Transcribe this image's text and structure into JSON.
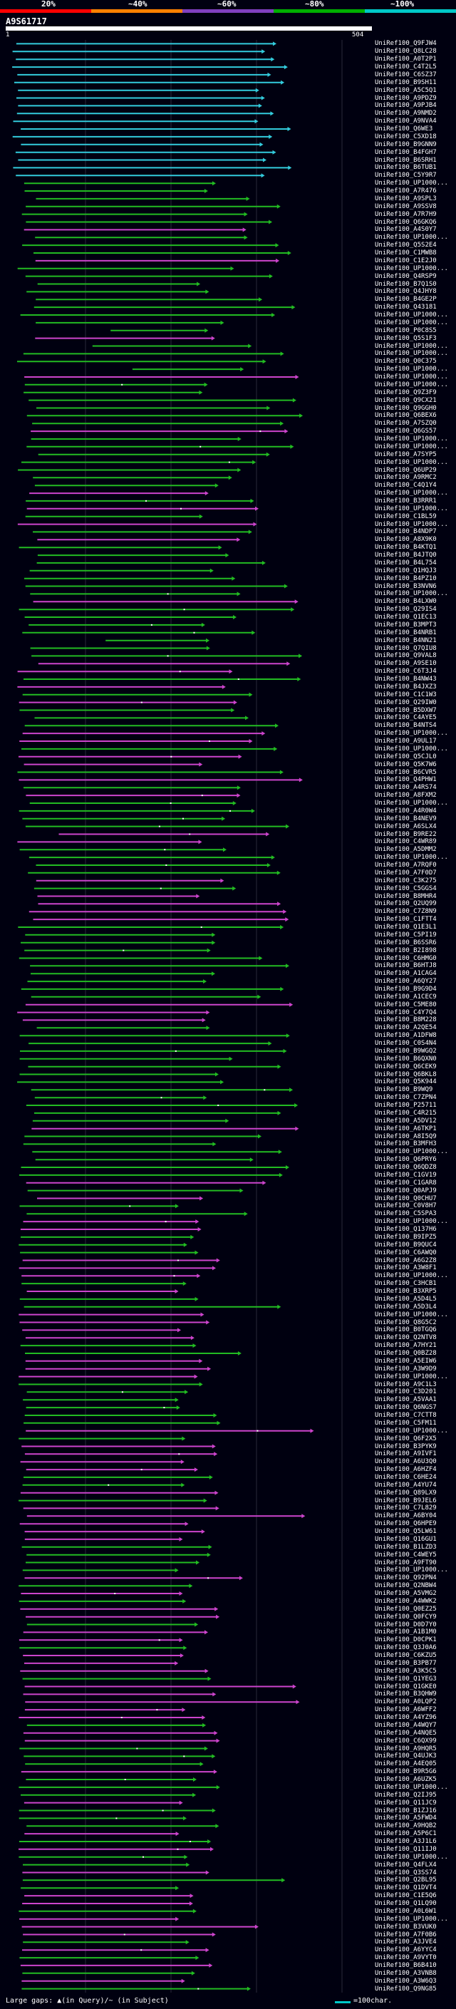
{
  "legend": {
    "labels": [
      "20%",
      "~40%",
      "~60%",
      "~80%",
      "~100%"
    ],
    "colors": [
      "#ff0000",
      "#ff8000",
      "#8040c0",
      "#00b000",
      "#00c8c8"
    ]
  },
  "query": {
    "id": "A9S61717",
    "start": "1",
    "end": "504"
  },
  "footer": {
    "gaps_text": "Large gaps: ▲(in Query)/~ (in Subject)",
    "scale_text": "=100char."
  },
  "colors": {
    "cyan": "#33ccdd",
    "green": "#22bb22",
    "magenta": "#cc44cc",
    "white": "#ffffff",
    "background": "#000010"
  },
  "hits": [
    "UniRef100_Q9FJW4",
    "UniRef100_Q8LC28",
    "UniRef100_A0T2P1",
    "UniRef100_C4T2L5",
    "UniRef100_C6SZ37",
    "UniRef100_B9SH11",
    "UniRef100_A5C5Q1",
    "UniRef100_A9PDZ9",
    "UniRef100_A9PJB4",
    "UniRef100_A9NMD2",
    "UniRef100_A9NVA4",
    "UniRef100_Q6WE3",
    "UniRef100_C5XD18",
    "UniRef100_B9GNN9",
    "UniRef100_B4FGH7",
    "UniRef100_B6SRH1",
    "UniRef100_B6TUB1",
    "UniRef100_C5Y9R7",
    "UniRef100_UP1000...",
    "UniRef100_A7R476",
    "UniRef100_A9SPL3",
    "UniRef100_A9SSV8",
    "UniRef100_A7R7H9",
    "UniRef100_Q6GKQ6",
    "UniRef100_A4S0Y7",
    "UniRef100_UP1000...",
    "UniRef100_Q5S2E4",
    "UniRef100_C1MWB8",
    "UniRef100_C1E2J0",
    "UniRef100_UP1000...",
    "UniRef100_Q4RSP9",
    "UniRef100_B7Q1S0",
    "UniRef100_Q4JHY8",
    "UniRef100_B4GE2P",
    "UniRef100_Q43181",
    "UniRef100_UP1000...",
    "UniRef100_UP1000...",
    "UniRef100_P0C8S5",
    "UniRef100_Q5S1F3",
    "UniRef100_UP1000...",
    "UniRef100_UP1000...",
    "UniRef100_Q0C375",
    "UniRef100_UP1000...",
    "UniRef100_UP1000...",
    "UniRef100_UP1000...",
    "UniRef100_Q9Z3F9",
    "UniRef100_Q9CX21",
    "UniRef100_Q9GGH0",
    "UniRef100_Q6BEX6",
    "UniRef100_A7SZQ0",
    "UniRef100_Q6GS57",
    "UniRef100_UP1000...",
    "UniRef100_UP1000...",
    "UniRef100_A7SYP5",
    "UniRef100_UP1000...",
    "UniRef100_Q6UP29",
    "UniRef100_A9RMC2",
    "UniRef100_C4Q1Y4",
    "UniRef100_UP1000...",
    "UniRef100_B3RRR1",
    "UniRef100_UP1000...",
    "UniRef100_C1BL59",
    "UniRef100_UP1000...",
    "UniRef100_B4NDP7",
    "UniRef100_A8X9K0",
    "UniRef100_B4KTQ1",
    "UniRef100_B4JTQ0",
    "UniRef100_B4L754",
    "UniRef100_Q1HQJ3",
    "UniRef100_B4PZ10",
    "UniRef100_B3NVN6",
    "UniRef100_UP1000...",
    "UniRef100_B4LXW0",
    "UniRef100_Q29IS4",
    "UniRef100_Q1EC13",
    "UniRef100_B3MPT3",
    "UniRef100_B4NRB1",
    "UniRef100_B4NN21",
    "UniRef100_Q7QIU8",
    "UniRef100_Q9VAL8",
    "UniRef100_A9SE10",
    "UniRef100_C6T3J4",
    "UniRef100_B4NW43",
    "UniRef100_B4JXZ3",
    "UniRef100_C1C1W3",
    "UniRef100_Q29IW0",
    "UniRef100_B5DXW7",
    "UniRef100_C4AYE5",
    "UniRef100_B4NTS4",
    "UniRef100_UP1000...",
    "UniRef100_A9UL17",
    "UniRef100_UP1000...",
    "UniRef100_Q5CJL0",
    "UniRef100_Q5K7W6",
    "UniRef100_B6CVR5",
    "UniRef100_Q4PHW1",
    "UniRef100_A4RS74",
    "UniRef100_A8FXM2",
    "UniRef100_UP1000...",
    "UniRef100_A4R0W4",
    "UniRef100_B4NEV9",
    "UniRef100_A6SLX4",
    "UniRef100_B9RE22",
    "UniRef100_C4WR89",
    "UniRef100_A5DMM2",
    "UniRef100_UP1000...",
    "UniRef100_A7RQF0",
    "UniRef100_A7F0D7",
    "UniRef100_C3K275",
    "UniRef100_C5GGS4",
    "UniRef100_B8MHR4",
    "UniRef100_Q2UQ99",
    "UniRef100_C7Z8N9",
    "UniRef100_C1FTT4",
    "UniRef100_Q1E3L1",
    "UniRef100_C5PI19",
    "UniRef100_B6SSR6",
    "UniRef100_B2I898",
    "UniRef100_C6HMG0",
    "UniRef100_B6HTJ8",
    "UniRef100_A1CAG4",
    "UniRef100_A6QY27",
    "UniRef100_B9G9D4",
    "UniRef100_A1CEC9",
    "UniRef100_C5ME80",
    "UniRef100_C4Y7Q4",
    "UniRef100_B8M228",
    "UniRef100_A2QE54",
    "UniRef100_A1DFW8",
    "UniRef100_C0S4N4",
    "UniRef100_B9WGQ2",
    "UniRef100_B6QXN0",
    "UniRef100_Q6CEK9",
    "UniRef100_Q6BKL8",
    "UniRef100_Q5K944",
    "UniRef100_B9WQ9",
    "UniRef100_C7ZPN4",
    "UniRef100_P25711",
    "UniRef100_C4R215",
    "UniRef100_A5DV12",
    "UniRef100_A6TKP1",
    "UniRef100_A8I5Q9",
    "UniRef100_B3MFH3",
    "UniRef100_UP1000...",
    "UniRef100_Q6PRY6",
    "UniRef100_Q6QDZ8",
    "UniRef100_C1GV19",
    "UniRef100_C1GAR8",
    "UniRef100_Q0APJ9",
    "UniRef100_Q0CHU7",
    "UniRef100_C0V8H7",
    "UniRef100_C5SPA3",
    "UniRef100_UP1000...",
    "UniRef100_Q137H6",
    "UniRef100_B9IPZ5",
    "UniRef100_B9QUC4",
    "UniRef100_C6AWQ0",
    "UniRef100_A6G2Z8",
    "UniRef100_A3W8F1",
    "UniRef100_UP1000...",
    "UniRef100_C3HCB1",
    "UniRef100_B3XRP5",
    "UniRef100_A5D4L5",
    "UniRef100_A5D3L4",
    "UniRef100_UP1000...",
    "UniRef100_Q8G5C2",
    "UniRef100_B0TGQ6",
    "UniRef100_Q2NTV8",
    "UniRef100_A7HY21",
    "UniRef100_Q0BZ28",
    "UniRef100_A5EIW6",
    "UniRef100_A3W9D9",
    "UniRef100_UP1000...",
    "UniRef100_A9C1L3",
    "UniRef100_C3D201",
    "UniRef100_A5VAA1",
    "UniRef100_Q6NGS7",
    "UniRef100_C7CTT8",
    "UniRef100_C5FM11",
    "UniRef100_UP1000...",
    "UniRef100_Q6F2X5",
    "UniRef100_B3PYK9",
    "UniRef100_A9IVF1",
    "UniRef100_A6U3Q0",
    "UniRef100_A6HZF4",
    "UniRef100_C6HE24",
    "UniRef100_A4YU74",
    "UniRef100_Q89LX9",
    "UniRef100_B9JEL6",
    "UniRef100_C7L829",
    "UniRef100_A6BY04",
    "UniRef100_Q6HPE9",
    "UniRef100_Q5LW61",
    "UniRef100_Q16GU1",
    "UniRef100_B1LZD3",
    "UniRef100_C4WEY5",
    "UniRef100_A9FT90",
    "UniRef100_UP1000...",
    "UniRef100_Q92PN4",
    "UniRef100_Q2NBW4",
    "UniRef100_A5VMG2",
    "UniRef100_A4WWK2",
    "UniRef100_Q0EZ25",
    "UniRef100_Q0FCY9",
    "UniRef100_D0D7Y0",
    "UniRef100_A1B1M0",
    "UniRef100_D0CPK1",
    "UniRef100_Q3J0A6",
    "UniRef100_C6KZU5",
    "UniRef100_B3PB77",
    "UniRef100_A3K5C5",
    "UniRef100_Q1YEG3",
    "UniRef100_Q1GKE0",
    "UniRef100_B3QHW9",
    "UniRef100_A0LQP2",
    "UniRef100_A6WFF2",
    "UniRef100_A4YZ96",
    "UniRef100_A4WQY7",
    "UniRef100_A4NQE5",
    "UniRef100_C6QX99",
    "UniRef100_A9HQR5",
    "UniRef100_Q4UJK3",
    "UniRef100_A4EQ05",
    "UniRef100_B9R5G6",
    "UniRef100_A6UZK5",
    "UniRef100_UP1000...",
    "UniRef100_Q2IJ95",
    "UniRef100_Q11JC9",
    "UniRef100_B1ZJ16",
    "UniRef100_A5FWD4",
    "UniRef100_A9HQB2",
    "UniRef100_A5P6C1",
    "UniRef100_A3J1L6",
    "UniRef100_Q11IJ0",
    "UniRef100_UP1000...",
    "UniRef100_Q4FLX4",
    "UniRef100_Q3SS74",
    "UniRef100_Q2BL95",
    "UniRef100_Q1DVT4",
    "UniRef100_C1E5Q6",
    "UniRef100_Q1LQ90",
    "UniRef100_A0L6W1",
    "UniRef100_UP1000...",
    "UniRef100_B3VUK0",
    "UniRef100_A7F0B6",
    "UniRef100_A3JVE4",
    "UniRef100_A6YYC4",
    "UniRef100_A9VYT0",
    "UniRef100_B6B410",
    "UniRef100_A3VNB8",
    "UniRef100_A3W6Q3",
    "UniRef100_Q9NG85"
  ]
}
